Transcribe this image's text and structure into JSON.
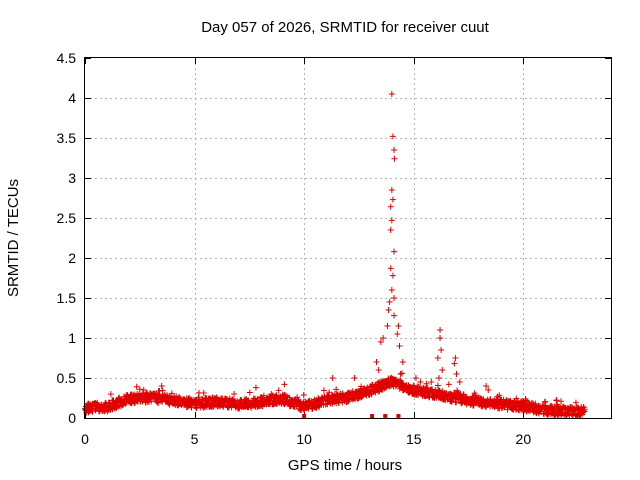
{
  "chart_data": {
    "type": "scatter",
    "title": "Day 057 of 2026, SRMTID for receiver cuut",
    "xlabel": "GPS time / hours",
    "ylabel": "SRMTID / TECUs",
    "xlim": [
      0,
      24
    ],
    "ylim": [
      0,
      4.5
    ],
    "x_ticks": [
      0,
      5,
      10,
      15,
      20
    ],
    "y_ticks": [
      0,
      0.5,
      1,
      1.5,
      2,
      2.5,
      3,
      3.5,
      4,
      4.5
    ],
    "y_tick_labels": [
      "0",
      "0.5",
      "1",
      "1.5",
      "2",
      "2.5",
      "3",
      "3.5",
      "4",
      "4.5"
    ],
    "grid": true,
    "marker": "plus",
    "color": "#e00000",
    "baseline_profile": [
      [
        0.0,
        0.12
      ],
      [
        1.0,
        0.14
      ],
      [
        2.0,
        0.24
      ],
      [
        3.0,
        0.26
      ],
      [
        4.0,
        0.22
      ],
      [
        5.0,
        0.18
      ],
      [
        6.0,
        0.2
      ],
      [
        7.0,
        0.17
      ],
      [
        8.0,
        0.2
      ],
      [
        9.0,
        0.24
      ],
      [
        10.0,
        0.14
      ],
      [
        11.0,
        0.22
      ],
      [
        12.0,
        0.26
      ],
      [
        13.0,
        0.35
      ],
      [
        14.0,
        0.45
      ],
      [
        15.0,
        0.35
      ],
      [
        16.0,
        0.3
      ],
      [
        17.0,
        0.25
      ],
      [
        18.0,
        0.2
      ],
      [
        19.0,
        0.17
      ],
      [
        20.0,
        0.15
      ],
      [
        21.0,
        0.1
      ],
      [
        22.0,
        0.08
      ],
      [
        22.8,
        0.08
      ]
    ],
    "highlight_points": [
      [
        14.0,
        4.05
      ],
      [
        14.05,
        3.52
      ],
      [
        14.1,
        3.35
      ],
      [
        14.12,
        3.24
      ],
      [
        14.0,
        2.85
      ],
      [
        14.05,
        2.73
      ],
      [
        13.95,
        2.64
      ],
      [
        14.0,
        2.47
      ],
      [
        13.95,
        2.35
      ],
      [
        14.1,
        2.08
      ],
      [
        13.95,
        1.87
      ],
      [
        14.05,
        1.78
      ],
      [
        14.0,
        1.6
      ],
      [
        14.1,
        1.5
      ],
      [
        13.9,
        1.45
      ],
      [
        13.85,
        1.35
      ],
      [
        14.1,
        1.28
      ],
      [
        13.8,
        1.15
      ],
      [
        14.3,
        1.15
      ],
      [
        14.25,
        1.05
      ],
      [
        13.6,
        1.0
      ],
      [
        13.5,
        0.95
      ],
      [
        14.35,
        0.9
      ],
      [
        13.3,
        0.7
      ],
      [
        14.5,
        0.7
      ],
      [
        13.4,
        0.6
      ],
      [
        14.4,
        0.55
      ],
      [
        16.2,
        1.1
      ],
      [
        16.2,
        1.0
      ],
      [
        16.25,
        0.85
      ],
      [
        16.1,
        0.75
      ],
      [
        16.3,
        0.6
      ],
      [
        16.15,
        0.5
      ],
      [
        16.9,
        0.75
      ],
      [
        16.85,
        0.68
      ],
      [
        16.95,
        0.55
      ],
      [
        17.1,
        0.45
      ],
      [
        15.1,
        0.5
      ],
      [
        15.3,
        0.45
      ],
      [
        15.8,
        0.45
      ],
      [
        16.6,
        0.42
      ],
      [
        18.3,
        0.4
      ],
      [
        18.4,
        0.35
      ],
      [
        7.8,
        0.38
      ],
      [
        9.1,
        0.42
      ],
      [
        11.3,
        0.5
      ],
      [
        12.3,
        0.5
      ],
      [
        12.9,
        0.35
      ],
      [
        3.5,
        0.4
      ],
      [
        2.5,
        0.36
      ],
      [
        6.8,
        0.3
      ],
      [
        8.5,
        0.3
      ]
    ],
    "bottom_markers": [
      10.0,
      13.1,
      13.7,
      14.3
    ]
  }
}
